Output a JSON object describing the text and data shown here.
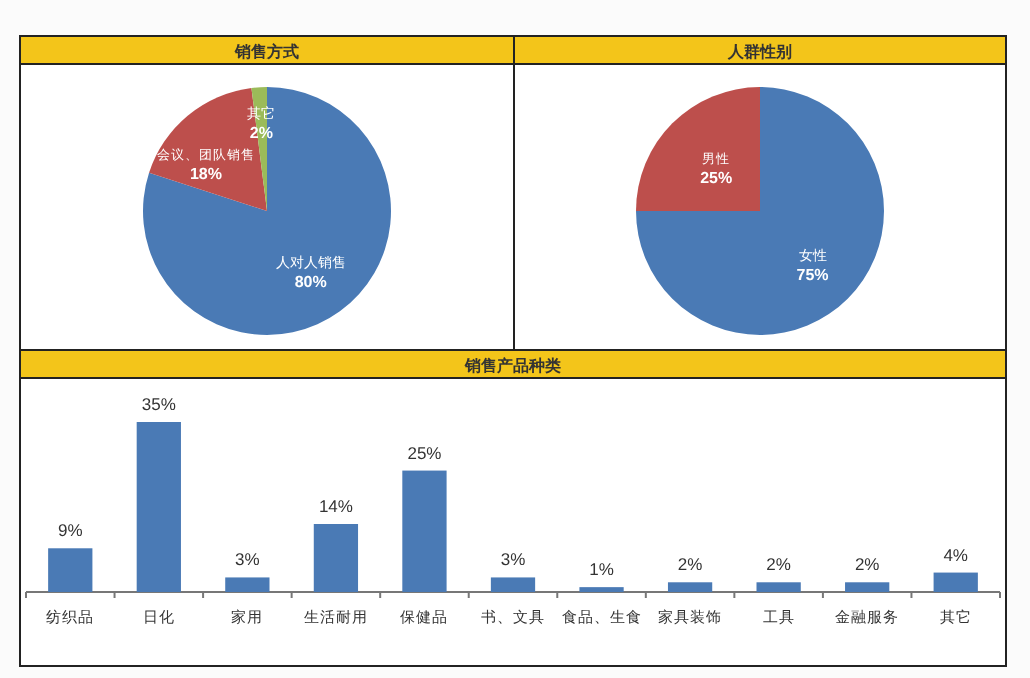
{
  "chart_data": [
    {
      "type": "pie",
      "title": "销售方式",
      "categories": [
        "人对人销售",
        "会议、团队销售",
        "其它"
      ],
      "values": [
        80,
        18,
        2
      ],
      "colors": [
        "#4a7ab5",
        "#bd4f4c",
        "#9bbb59"
      ],
      "value_labels": [
        "80%",
        "18%",
        "2%"
      ]
    },
    {
      "type": "pie",
      "title": "人群性别",
      "categories": [
        "女性",
        "男性"
      ],
      "values": [
        75,
        25
      ],
      "colors": [
        "#4a7ab5",
        "#bd4f4c"
      ],
      "value_labels": [
        "75%",
        "25%"
      ]
    },
    {
      "type": "bar",
      "title": "销售产品种类",
      "categories": [
        "纺织品",
        "日化",
        "家用",
        "生活耐用",
        "保健品",
        "书、文具",
        "食品、生食",
        "家具装饰",
        "工具",
        "金融服务",
        "其它"
      ],
      "values": [
        9,
        35,
        3,
        14,
        25,
        3,
        1,
        2,
        2,
        2,
        4
      ],
      "color": "#4a7ab5",
      "value_labels": [
        "9%",
        "35%",
        "3%",
        "14%",
        "25%",
        "3%",
        "1%",
        "2%",
        "2%",
        "2%",
        "4%"
      ]
    }
  ]
}
